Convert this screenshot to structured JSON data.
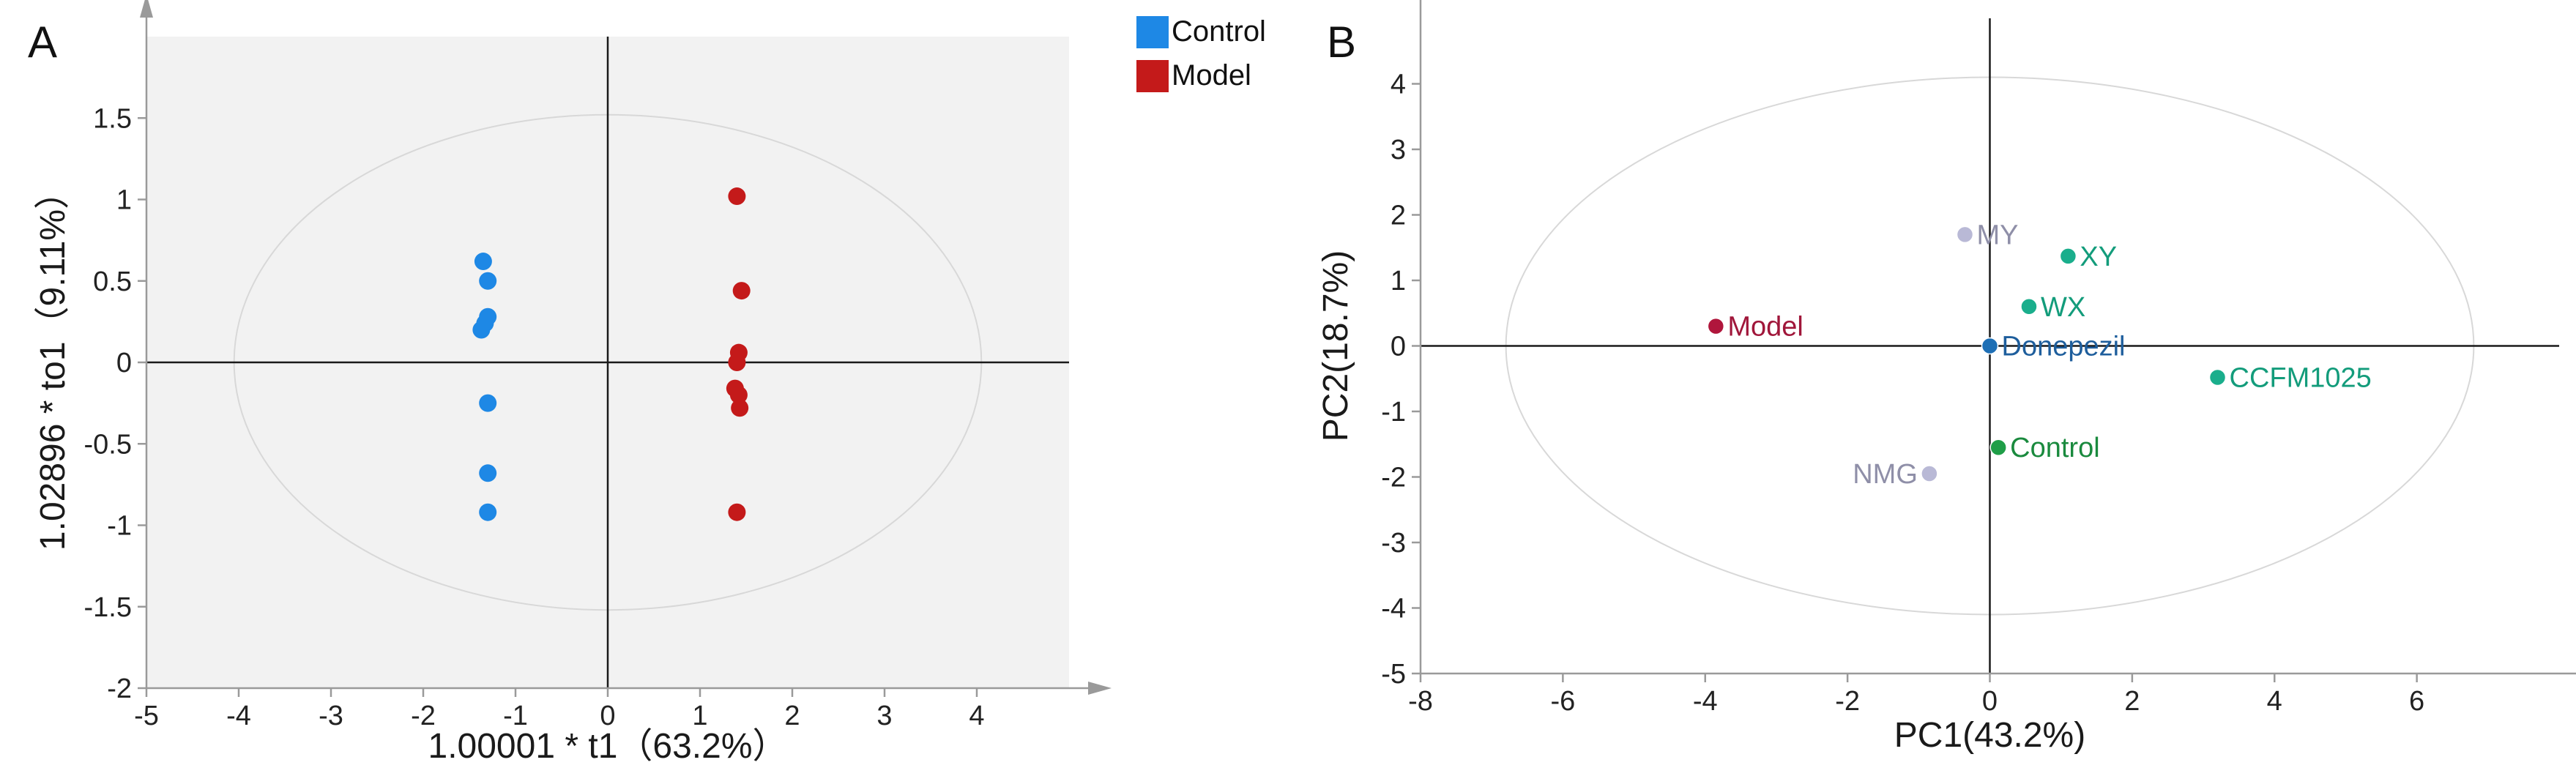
{
  "chart_data": [
    {
      "panel_label": "A",
      "type": "scatter",
      "xlabel": "1.00001 * t1（63.2%）",
      "ylabel": "1.02896 * to1（9.11%）",
      "xlim": [
        -5,
        5
      ],
      "ylim": [
        -2,
        2
      ],
      "xticks": [
        -5,
        -4,
        -3,
        -2,
        -1,
        0,
        1,
        2,
        3,
        4
      ],
      "yticks": [
        -2,
        -1.5,
        -1,
        -0.5,
        0,
        0.5,
        1,
        1.5
      ],
      "grid": false,
      "confidence_ellipse": {
        "cx": 0,
        "cy": 0,
        "rx": 4.05,
        "ry": 1.52
      },
      "legend": {
        "position": "top-right-outside"
      },
      "series": [
        {
          "name": "Control",
          "color": "#1e88e5",
          "points": [
            [
              -1.35,
              0.62
            ],
            [
              -1.3,
              0.5
            ],
            [
              -1.3,
              0.28
            ],
            [
              -1.33,
              0.24
            ],
            [
              -1.37,
              0.2
            ],
            [
              -1.3,
              -0.25
            ],
            [
              -1.3,
              -0.68
            ],
            [
              -1.3,
              -0.92
            ]
          ]
        },
        {
          "name": "Model",
          "color": "#c41a1a",
          "points": [
            [
              1.4,
              1.02
            ],
            [
              1.45,
              0.44
            ],
            [
              1.42,
              0.06
            ],
            [
              1.4,
              0.0
            ],
            [
              1.38,
              -0.16
            ],
            [
              1.42,
              -0.2
            ],
            [
              1.43,
              -0.28
            ],
            [
              1.4,
              -0.92
            ]
          ]
        }
      ]
    },
    {
      "panel_label": "B",
      "type": "scatter",
      "xlabel": "PC1(43.2%)",
      "ylabel": "PC2(18.7%)",
      "xlim": [
        -8,
        8
      ],
      "ylim": [
        -5,
        5
      ],
      "xticks": [
        -8,
        -6,
        -4,
        -2,
        0,
        2,
        4,
        6
      ],
      "yticks": [
        -5,
        -4,
        -3,
        -2,
        -1,
        0,
        1,
        2,
        3,
        4
      ],
      "grid": false,
      "confidence_ellipse": {
        "cx": 0,
        "cy": 0,
        "rx": 6.8,
        "ry": 4.1
      },
      "points": [
        {
          "label": "MY",
          "x": -0.35,
          "y": 1.7,
          "color": "#b9b9d6",
          "label_color": "#8f8fa8",
          "label_side": "right"
        },
        {
          "label": "XY",
          "x": 1.1,
          "y": 1.37,
          "color": "#1aae8c",
          "label_color": "#139c7b",
          "label_side": "right"
        },
        {
          "label": "WX",
          "x": 0.55,
          "y": 0.6,
          "color": "#1aae8c",
          "label_color": "#139c7b",
          "label_side": "right"
        },
        {
          "label": "Model",
          "x": -3.85,
          "y": 0.3,
          "color": "#b0163c",
          "label_color": "#a0163a",
          "label_side": "right"
        },
        {
          "label": "Donepezil",
          "x": 0.0,
          "y": 0.0,
          "color": "#1e6fb5",
          "label_color": "#1e5e9c",
          "label_side": "right"
        },
        {
          "label": "CCFM1025",
          "x": 3.2,
          "y": -0.48,
          "color": "#1aae8c",
          "label_color": "#139c7b",
          "label_side": "right"
        },
        {
          "label": "Control",
          "x": 0.12,
          "y": -1.55,
          "color": "#1f9e48",
          "label_color": "#1a8a3e",
          "label_side": "right"
        },
        {
          "label": "NMG",
          "x": -0.85,
          "y": -1.95,
          "color": "#b9b9d6",
          "label_color": "#8f8fa8",
          "label_side": "left"
        }
      ]
    }
  ]
}
